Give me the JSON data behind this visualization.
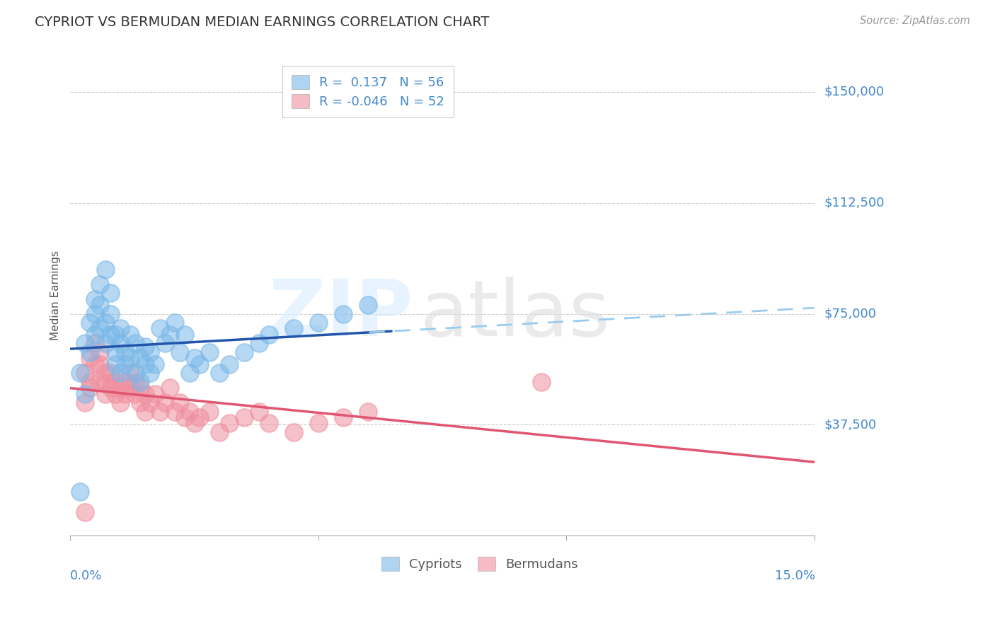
{
  "title": "CYPRIOT VS BERMUDAN MEDIAN EARNINGS CORRELATION CHART",
  "source": "Source: ZipAtlas.com",
  "ylabel": "Median Earnings",
  "ytick_labels": [
    "$37,500",
    "$75,000",
    "$112,500",
    "$150,000"
  ],
  "ytick_values": [
    37500,
    75000,
    112500,
    150000
  ],
  "ymin": 0,
  "ymax": 162500,
  "xmin": 0.0,
  "xmax": 0.15,
  "legend_r1": "R =  0.137   N = 56",
  "legend_r2": "R = -0.046   N = 52",
  "cypriot_color": "#7ab8e8",
  "bermudan_color": "#f090a0",
  "trend_blue_solid_color": "#2255aa",
  "trend_pink_solid_color": "#e05570",
  "trend_dashed_color": "#99ccee",
  "title_color": "#333333",
  "axis_label_color": "#4488cc",
  "source_color": "#999999",
  "grid_color": "#cccccc",
  "legend_box_color": "#dddddd",
  "watermark_zip_color": "#ddeeff",
  "watermark_atlas_color": "#dddddd",
  "cypriot_x": [
    0.003,
    0.004,
    0.004,
    0.005,
    0.005,
    0.005,
    0.006,
    0.006,
    0.006,
    0.007,
    0.007,
    0.007,
    0.008,
    0.008,
    0.008,
    0.009,
    0.009,
    0.009,
    0.01,
    0.01,
    0.01,
    0.011,
    0.011,
    0.012,
    0.012,
    0.013,
    0.013,
    0.014,
    0.014,
    0.015,
    0.015,
    0.016,
    0.016,
    0.017,
    0.018,
    0.019,
    0.02,
    0.021,
    0.022,
    0.023,
    0.024,
    0.025,
    0.026,
    0.028,
    0.03,
    0.032,
    0.035,
    0.038,
    0.04,
    0.045,
    0.05,
    0.055,
    0.06,
    0.002,
    0.002,
    0.003
  ],
  "cypriot_y": [
    65000,
    62000,
    72000,
    68000,
    75000,
    80000,
    70000,
    78000,
    85000,
    65000,
    72000,
    90000,
    68000,
    75000,
    82000,
    62000,
    68000,
    58000,
    65000,
    70000,
    55000,
    62000,
    58000,
    60000,
    68000,
    55000,
    65000,
    60000,
    52000,
    58000,
    64000,
    55000,
    62000,
    58000,
    70000,
    65000,
    68000,
    72000,
    62000,
    68000,
    55000,
    60000,
    58000,
    62000,
    55000,
    58000,
    62000,
    65000,
    68000,
    70000,
    72000,
    75000,
    78000,
    55000,
    15000,
    48000
  ],
  "bermudan_x": [
    0.003,
    0.004,
    0.004,
    0.005,
    0.005,
    0.006,
    0.006,
    0.006,
    0.007,
    0.007,
    0.007,
    0.008,
    0.008,
    0.009,
    0.009,
    0.01,
    0.01,
    0.011,
    0.011,
    0.012,
    0.012,
    0.013,
    0.013,
    0.014,
    0.014,
    0.015,
    0.015,
    0.016,
    0.017,
    0.018,
    0.019,
    0.02,
    0.021,
    0.022,
    0.023,
    0.024,
    0.025,
    0.026,
    0.028,
    0.03,
    0.032,
    0.035,
    0.038,
    0.04,
    0.045,
    0.05,
    0.055,
    0.06,
    0.003,
    0.004,
    0.095,
    0.003
  ],
  "bermudan_y": [
    55000,
    52000,
    60000,
    58000,
    65000,
    62000,
    52000,
    58000,
    55000,
    48000,
    52000,
    50000,
    55000,
    48000,
    52000,
    50000,
    45000,
    52000,
    48000,
    50000,
    55000,
    48000,
    52000,
    45000,
    50000,
    48000,
    42000,
    45000,
    48000,
    42000,
    45000,
    50000,
    42000,
    45000,
    40000,
    42000,
    38000,
    40000,
    42000,
    35000,
    38000,
    40000,
    42000,
    38000,
    35000,
    38000,
    40000,
    42000,
    45000,
    50000,
    52000,
    8000
  ]
}
